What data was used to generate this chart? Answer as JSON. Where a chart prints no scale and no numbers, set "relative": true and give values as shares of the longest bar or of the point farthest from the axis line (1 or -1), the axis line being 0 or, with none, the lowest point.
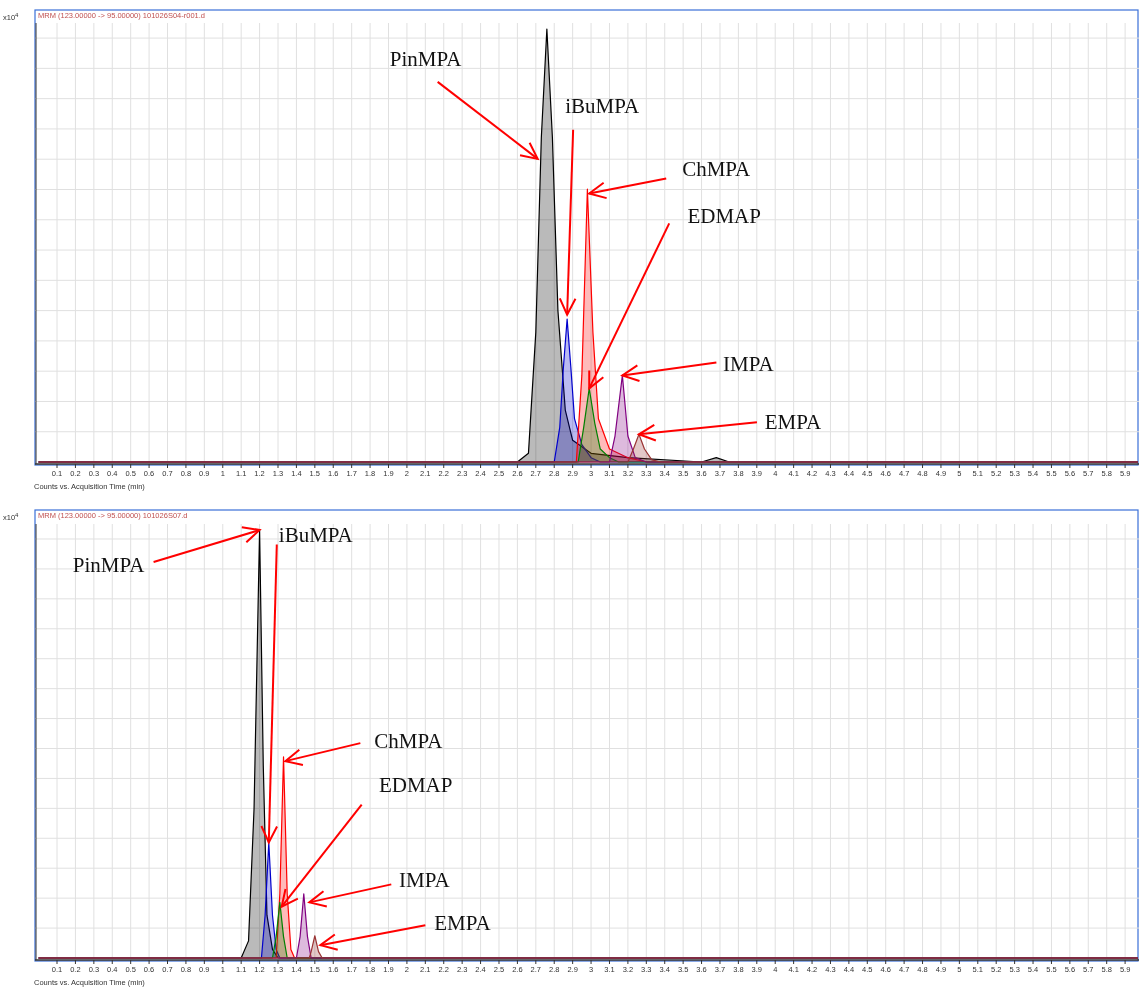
{
  "chart_data": [
    {
      "type": "area",
      "title": "MRM (123.00000 -> 95.00000) 101026S04-r001.d",
      "xlabel": "Counts vs. Acquisition Time (min)",
      "relative": true,
      "grid": true,
      "tick_labels": "x",
      "xlim": [
        0,
        5.97
      ],
      "xticks": [
        0.1,
        0.2,
        0.3,
        0.4,
        0.5,
        0.6,
        0.7,
        0.8,
        0.9,
        1,
        1.1,
        1.2,
        1.3,
        1.4,
        1.5,
        1.6,
        1.7,
        1.8,
        1.9,
        2,
        2.1,
        2.2,
        2.3,
        2.4,
        2.5,
        2.6,
        2.7,
        2.8,
        2.9,
        3,
        3.1,
        3.2,
        3.3,
        3.4,
        3.5,
        3.6,
        3.7,
        3.8,
        3.9,
        4,
        4.1,
        4.2,
        4.3,
        4.4,
        4.5,
        4.6,
        4.7,
        4.8,
        4.9,
        5,
        5.1,
        5.2,
        5.3,
        5.4,
        5.5,
        5.6,
        5.7,
        5.8,
        5.9
      ],
      "annotations": [
        "x10$^{4}$",
        {
          "text": "PinMPA",
          "x": 2.71,
          "y": 0.7
        },
        {
          "text": "iBuMPA",
          "x": 2.87,
          "y": 0.34
        },
        {
          "text": "ChMPA",
          "x": 2.99,
          "y": 0.62
        },
        {
          "text": "EDMAP",
          "x": 2.99,
          "y": 0.17
        },
        {
          "text": "IMPA",
          "x": 3.17,
          "y": 0.2
        },
        {
          "text": "EMPA",
          "x": 3.26,
          "y": 0.064
        }
      ],
      "series": [
        {
          "color": "#000000",
          "x": [
            0,
            2.6,
            2.66,
            2.7,
            2.73,
            2.76,
            2.79,
            2.82,
            2.86,
            2.9,
            3.0,
            3.2,
            3.6,
            3.68,
            3.75,
            5.97
          ],
          "values": [
            0,
            0,
            0.02,
            0.3,
            0.75,
            1,
            0.75,
            0.35,
            0.12,
            0.05,
            0.02,
            0.01,
            0,
            0.01,
            0,
            0
          ]
        },
        {
          "color": "#0000cc",
          "x": [
            0,
            2.8,
            2.83,
            2.85,
            2.87,
            2.89,
            2.91,
            2.95,
            3.0,
            3.05,
            5.97
          ],
          "values": [
            0,
            0,
            0.08,
            0.22,
            0.33,
            0.22,
            0.1,
            0.04,
            0.01,
            0,
            0
          ]
        },
        {
          "color": "#ff0000",
          "x": [
            0,
            2.92,
            2.95,
            2.98,
            3.01,
            3.04,
            3.1,
            3.2,
            3.3,
            5.97
          ],
          "values": [
            0,
            0,
            0.2,
            0.63,
            0.3,
            0.1,
            0.03,
            0.01,
            0,
            0
          ]
        },
        {
          "color": "#008000",
          "x": [
            0,
            2.93,
            2.96,
            2.99,
            3.02,
            3.05,
            3.1,
            3.15,
            5.97
          ],
          "values": [
            0,
            0,
            0.08,
            0.17,
            0.09,
            0.03,
            0.01,
            0,
            0
          ]
        },
        {
          "color": "#800080",
          "x": [
            0,
            3.1,
            3.13,
            3.17,
            3.2,
            3.24,
            3.3,
            5.97
          ],
          "values": [
            0,
            0,
            0.06,
            0.2,
            0.06,
            0.01,
            0,
            0
          ]
        },
        {
          "color": "#993333",
          "x": [
            0,
            3.2,
            3.23,
            3.26,
            3.29,
            3.33,
            3.38,
            5.97
          ],
          "values": [
            0,
            0,
            0.03,
            0.064,
            0.03,
            0.005,
            0,
            0
          ]
        }
      ]
    },
    {
      "type": "area",
      "title": "MRM (123.00000 -> 95.00000) 101026S07.d",
      "xlabel": "Counts vs. Acquisition Time (min)",
      "relative": true,
      "grid": true,
      "tick_labels": "x",
      "xlim": [
        0,
        5.97
      ],
      "xticks": [
        0.1,
        0.2,
        0.3,
        0.4,
        0.5,
        0.6,
        0.7,
        0.8,
        0.9,
        1,
        1.1,
        1.2,
        1.3,
        1.4,
        1.5,
        1.6,
        1.7,
        1.8,
        1.9,
        2,
        2.1,
        2.2,
        2.3,
        2.4,
        2.5,
        2.6,
        2.7,
        2.8,
        2.9,
        3,
        3.1,
        3.2,
        3.3,
        3.4,
        3.5,
        3.6,
        3.7,
        3.8,
        3.9,
        4,
        4.1,
        4.2,
        4.3,
        4.4,
        4.5,
        4.6,
        4.7,
        4.8,
        4.9,
        5,
        5.1,
        5.2,
        5.3,
        5.4,
        5.5,
        5.6,
        5.7,
        5.8,
        5.9
      ],
      "annotations": [
        "x10$^{4}$",
        {
          "text": "PinMPA",
          "x": 1.2,
          "y": 1
        },
        {
          "text": "iBuMPA",
          "x": 1.25,
          "y": 0.27
        },
        {
          "text": "ChMPA",
          "x": 1.34,
          "y": 0.46
        },
        {
          "text": "EDMAP",
          "x": 1.32,
          "y": 0.12
        },
        {
          "text": "IMPA",
          "x": 1.47,
          "y": 0.13
        },
        {
          "text": "EMPA",
          "x": 1.53,
          "y": 0.03
        }
      ],
      "series": [
        {
          "color": "#000000",
          "x": [
            0,
            1.1,
            1.14,
            1.17,
            1.2,
            1.22,
            1.24,
            1.27,
            1.3,
            5.97
          ],
          "values": [
            0,
            0,
            0.04,
            0.35,
            1,
            0.45,
            0.1,
            0.02,
            0,
            0
          ]
        },
        {
          "color": "#0000cc",
          "x": [
            0,
            1.21,
            1.23,
            1.25,
            1.27,
            1.29,
            1.31,
            5.97
          ],
          "values": [
            0,
            0,
            0.1,
            0.27,
            0.1,
            0.02,
            0,
            0
          ]
        },
        {
          "color": "#ff0000",
          "x": [
            0,
            1.29,
            1.31,
            1.33,
            1.35,
            1.37,
            1.39,
            5.97
          ],
          "values": [
            0,
            0,
            0.15,
            0.47,
            0.15,
            0.02,
            0,
            0
          ]
        },
        {
          "color": "#008000",
          "x": [
            0,
            1.27,
            1.29,
            1.31,
            1.33,
            1.35,
            5.97
          ],
          "values": [
            0,
            0,
            0.05,
            0.13,
            0.05,
            0,
            0
          ]
        },
        {
          "color": "#800080",
          "x": [
            0,
            1.4,
            1.42,
            1.44,
            1.46,
            1.48,
            5.97
          ],
          "values": [
            0,
            0,
            0.05,
            0.15,
            0.05,
            0,
            0
          ]
        },
        {
          "color": "#993333",
          "x": [
            0,
            1.47,
            1.48,
            1.5,
            1.52,
            1.54,
            5.97
          ],
          "values": [
            0,
            0,
            0.015,
            0.052,
            0.015,
            0,
            0
          ]
        }
      ]
    }
  ]
}
